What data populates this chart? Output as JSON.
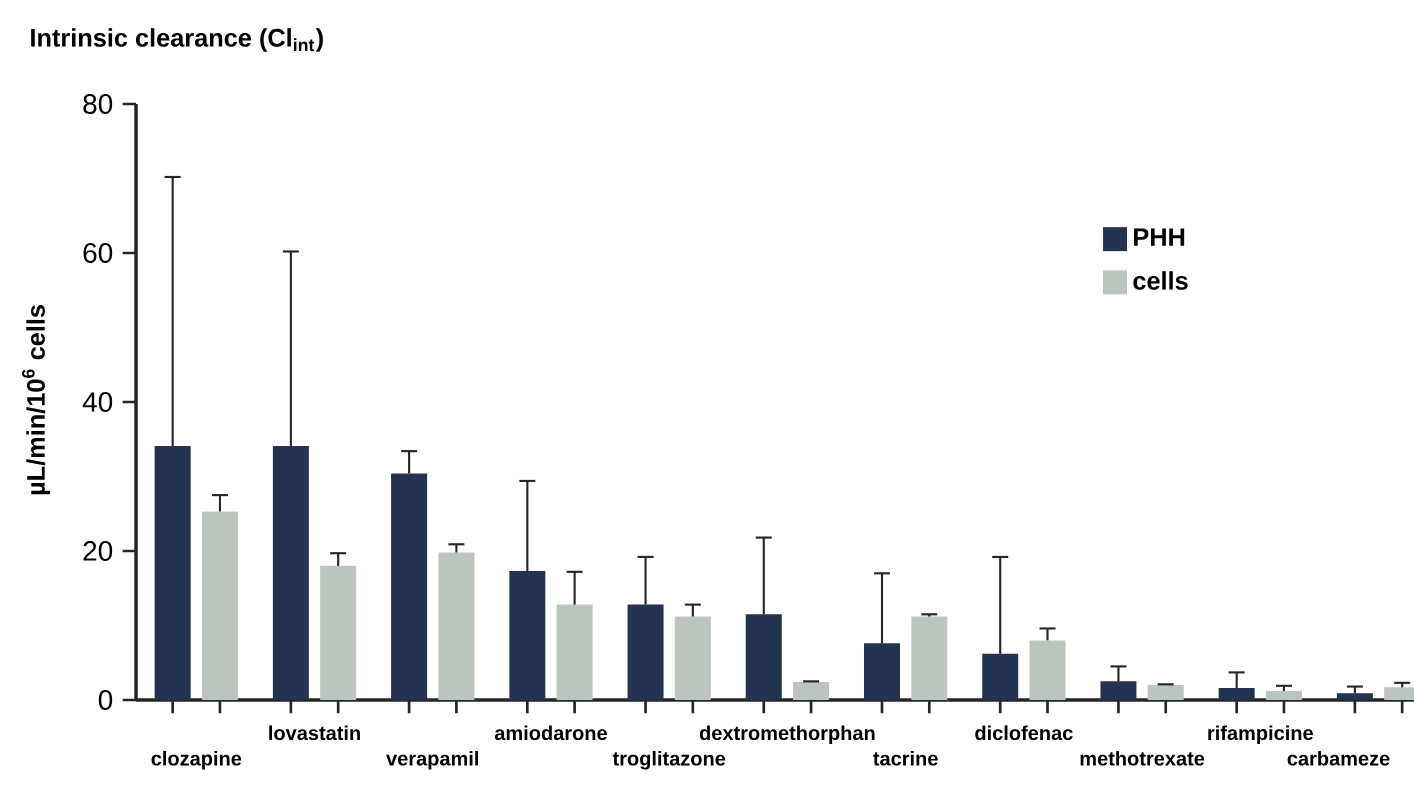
{
  "chart_data": {
    "type": "bar",
    "title": "Intrinsic clearance (Cl$_{int}$)",
    "ylabel": "µL/min/10$^{6}$ cells",
    "categories": [
      "clozapine",
      "lovastatin",
      "verapamil",
      "amiodarone",
      "troglitazone",
      "dextromethorphan",
      "tacrine",
      "diclofenac",
      "methotrexate",
      "rifampicine",
      "carbameze"
    ],
    "series": [
      {
        "name": "PHH",
        "color": "#243352",
        "values": [
          34.1,
          34.1,
          30.4,
          17.3,
          12.8,
          11.5,
          7.6,
          6.2,
          2.5,
          1.6,
          0.9
        ],
        "errors": [
          [
            34.1,
            70.2
          ],
          [
            34.1,
            60.2
          ],
          [
            30.4,
            33.4
          ],
          [
            17.3,
            29.4
          ],
          [
            12.8,
            19.2
          ],
          [
            11.5,
            21.8
          ],
          [
            7.6,
            17.0
          ],
          [
            6.2,
            19.2
          ],
          [
            2.5,
            4.5
          ],
          [
            1.6,
            3.7
          ],
          [
            0.9,
            1.8
          ]
        ]
      },
      {
        "name": "cells",
        "color": "#bcc5bd",
        "values": [
          25.3,
          18.0,
          19.8,
          12.8,
          11.2,
          2.4,
          11.2,
          8.0,
          2.0,
          1.2,
          1.7
        ],
        "errors": [
          [
            25.3,
            27.5
          ],
          [
            18.0,
            19.7
          ],
          [
            19.8,
            20.9
          ],
          [
            12.8,
            17.2
          ],
          [
            11.2,
            12.8
          ],
          [
            2.4,
            2.5
          ],
          [
            11.2,
            11.5
          ],
          [
            8.0,
            9.6
          ],
          [
            2.0,
            2.1
          ],
          [
            1.2,
            1.9
          ],
          [
            1.7,
            2.3
          ]
        ]
      }
    ],
    "ylim": [
      0,
      80
    ],
    "yticks": [
      0,
      20,
      40,
      60,
      80
    ],
    "legend": "right"
  }
}
